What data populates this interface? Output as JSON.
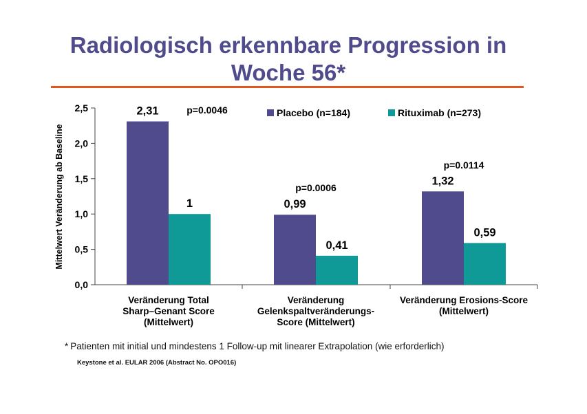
{
  "title": {
    "line1": "Radiologisch erkennbare Progression in",
    "line2": "Woche 56*"
  },
  "colors": {
    "title": "#4f4b8c",
    "rule": "#e1571e",
    "placebo": "#4f4b8c",
    "rituximab": "#0f9a97"
  },
  "chart_data": {
    "type": "bar",
    "ylabel": "Mittelwert Veränderung ab Baseline",
    "ylim": [
      0,
      2.5
    ],
    "yticks": [
      "0,0",
      "0,5",
      "1,0",
      "1,5",
      "2,0",
      "2,5"
    ],
    "ytick_values": [
      0,
      0.5,
      1.0,
      1.5,
      2.0,
      2.5
    ],
    "categories": [
      [
        "Veränderung Total",
        "Sharp–Genant Score",
        "(Mittelwert)"
      ],
      [
        "Veränderung",
        "Gelenkspaltveränderungs-",
        "Score (Mittelwert)"
      ],
      [
        "Veränderung Erosions-Score",
        "(Mittelwert)"
      ]
    ],
    "series": [
      {
        "name": "Placebo (n=184)",
        "values": [
          2.31,
          0.99,
          1.32
        ],
        "labels": [
          "2,31",
          "0,99",
          "1,32"
        ]
      },
      {
        "name": "Rituximab (n=273)",
        "values": [
          1.0,
          0.41,
          0.59
        ],
        "labels": [
          "1",
          "0,41",
          "0,59"
        ]
      }
    ],
    "pvalues": [
      "p=0.0046",
      "p=0.0006",
      "p=0.0114"
    ],
    "grid": false,
    "legend_position": "top-right"
  },
  "footnote": {
    "mark": "*",
    "text": "Patienten mit initial und mindestens 1 Follow-up mit linearer Extrapolation (wie erforderlich)"
  },
  "source": "Keystone et al. EULAR 2006 (Abstract No. OPO016)"
}
